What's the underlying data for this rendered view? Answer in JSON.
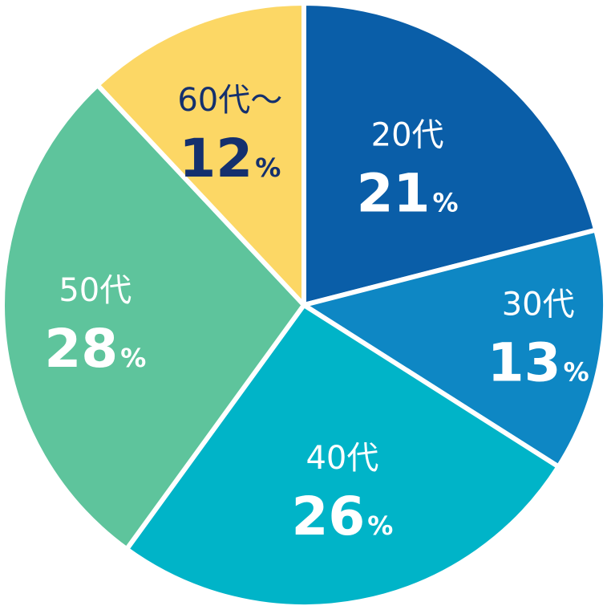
{
  "chart_data": {
    "type": "pie",
    "slices": [
      {
        "category": "20代",
        "value": 21,
        "value_label": "21",
        "unit": "%",
        "color": "#0a5ea8",
        "text_color": "#ffffff"
      },
      {
        "category": "30代",
        "value": 13,
        "value_label": "13",
        "unit": "%",
        "color": "#0e87c4",
        "text_color": "#ffffff"
      },
      {
        "category": "40代",
        "value": 26,
        "value_label": "26",
        "unit": "%",
        "color": "#00b4c8",
        "text_color": "#ffffff"
      },
      {
        "category": "50代",
        "value": 28,
        "value_label": "28",
        "unit": "%",
        "color": "#5ec49c",
        "text_color": "#ffffff"
      },
      {
        "category": "60代～",
        "value": 12,
        "value_label": "12",
        "unit": "%",
        "color": "#fcd765",
        "text_color": "#14306e"
      }
    ],
    "start_angle_deg": 0,
    "direction": "clockwise",
    "separator_color": "#ffffff"
  }
}
